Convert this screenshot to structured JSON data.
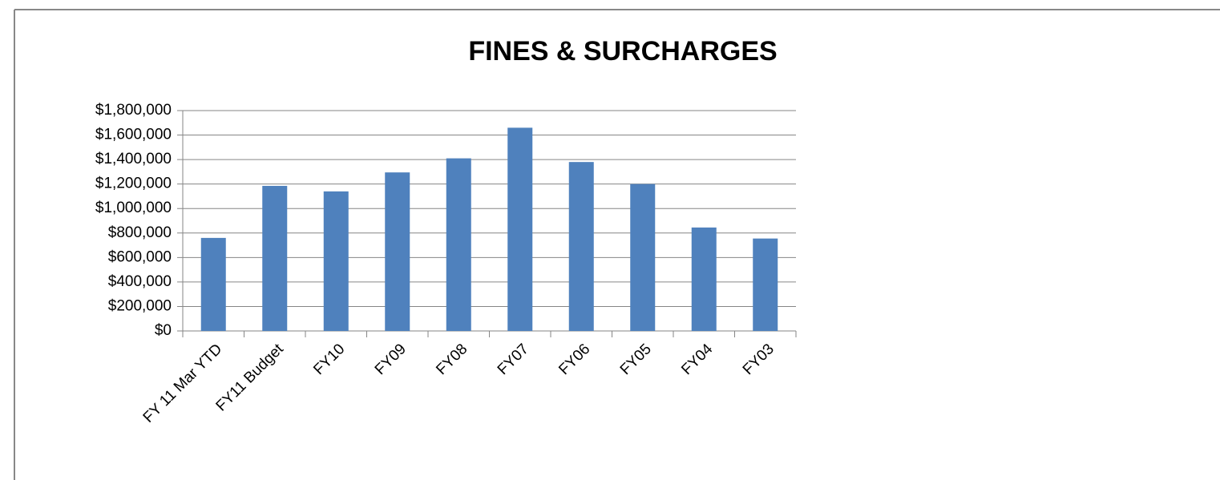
{
  "chart_data": {
    "type": "bar",
    "title": "FINES & SURCHARGES",
    "categories": [
      "FY 11 Mar YTD",
      "FY11 Budget",
      "FY10",
      "FY09",
      "FY08",
      "FY07",
      "FY06",
      "FY05",
      "FY04",
      "FY03"
    ],
    "values": [
      760000,
      1185000,
      1140000,
      1295000,
      1410000,
      1660000,
      1380000,
      1200000,
      845000,
      755000
    ],
    "color": "#4f81bd",
    "ylim": [
      0,
      1800000
    ],
    "yticks": [
      {
        "value": 0,
        "label": "$0"
      },
      {
        "value": 200000,
        "label": "$200,000"
      },
      {
        "value": 400000,
        "label": "$400,000"
      },
      {
        "value": 600000,
        "label": "$600,000"
      },
      {
        "value": 800000,
        "label": "$800,000"
      },
      {
        "value": 1000000,
        "label": "$1,000,000"
      },
      {
        "value": 1200000,
        "label": "$1,200,000"
      },
      {
        "value": 1400000,
        "label": "$1,400,000"
      },
      {
        "value": 1600000,
        "label": "$1,600,000"
      },
      {
        "value": 1800000,
        "label": "$1,800,000"
      }
    ],
    "grid": true
  }
}
